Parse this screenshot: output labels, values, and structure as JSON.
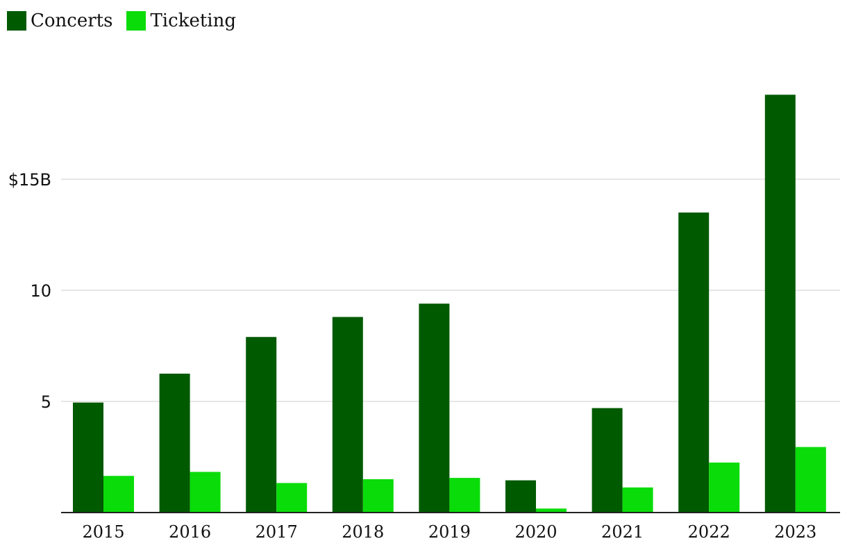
{
  "chart_data": {
    "type": "bar",
    "categories": [
      "2015",
      "2016",
      "2017",
      "2018",
      "2019",
      "2020",
      "2021",
      "2022",
      "2023"
    ],
    "series": [
      {
        "name": "Concerts",
        "color": "#005a00",
        "values": [
          4.95,
          6.25,
          7.9,
          8.8,
          9.4,
          1.45,
          4.7,
          13.5,
          18.8
        ]
      },
      {
        "name": "Ticketing",
        "color": "#0adc0a",
        "values": [
          1.65,
          1.83,
          1.33,
          1.5,
          1.56,
          0.18,
          1.13,
          2.25,
          2.95
        ]
      }
    ],
    "yticks": [
      {
        "value": 5,
        "label": "5"
      },
      {
        "value": 10,
        "label": "10"
      },
      {
        "value": 15,
        "label": "$15B"
      }
    ],
    "ylim": [
      0,
      21.5
    ],
    "grid": true,
    "legend_position": "top-left"
  }
}
